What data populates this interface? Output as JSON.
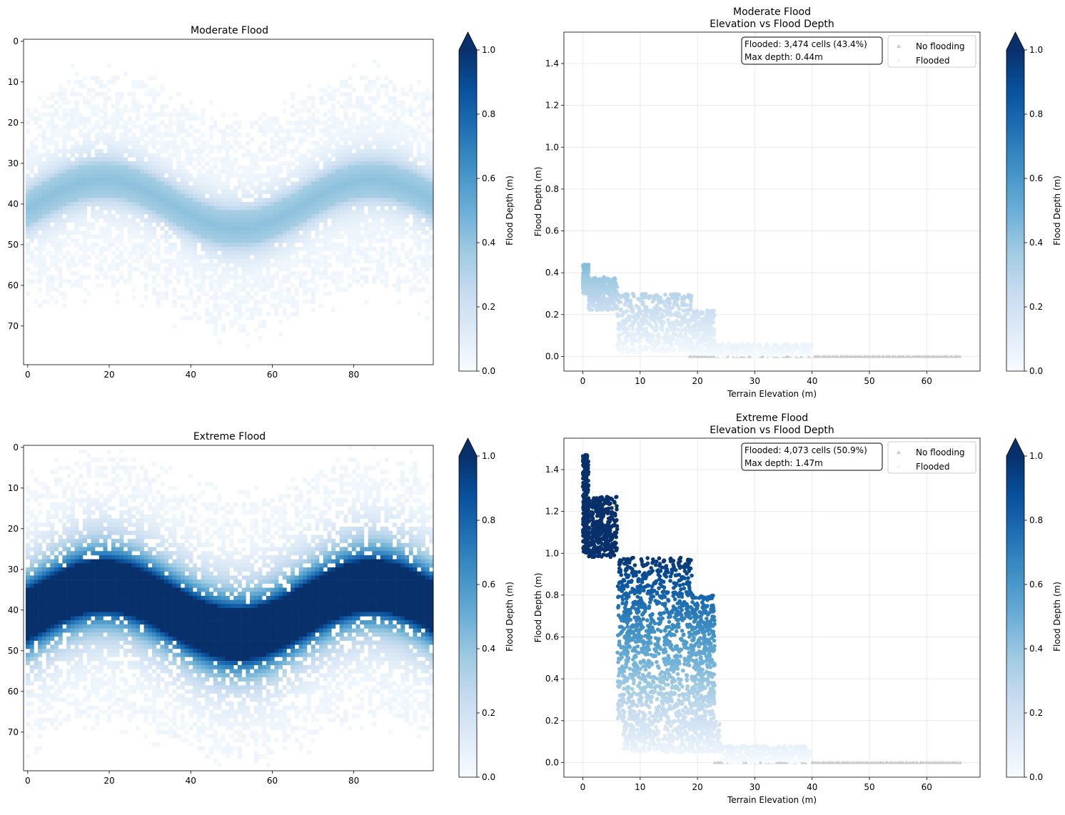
{
  "chart_data": [
    {
      "type": "heatmap",
      "title": "Moderate Flood",
      "xlabel": "",
      "ylabel": "",
      "grid_size": {
        "rows": 80,
        "cols": 100
      },
      "xticks": [
        0,
        20,
        40,
        60,
        80
      ],
      "yticks": [
        0,
        10,
        20,
        30,
        40,
        50,
        60,
        70
      ],
      "xlim": [
        -0.5,
        99.5
      ],
      "ylim": [
        79.5,
        -0.5
      ],
      "colormap": "Blues",
      "colorbar": {
        "label": "Flood Depth (m)",
        "range": [
          0.0,
          1.0
        ],
        "ticks": [
          "0.0",
          "0.2",
          "0.4",
          "0.6",
          "0.8",
          "1.0"
        ],
        "extend": "max"
      },
      "river": {
        "center_row": 40,
        "amplitude_rows": 6,
        "period_cols": 66,
        "peak_depth": 0.44,
        "band_halfwidth_rows": 4,
        "spread_rows": 16
      }
    },
    {
      "type": "scatter",
      "title": "Moderate Flood\nElevation vs Flood Depth",
      "title_lines": [
        "Moderate Flood",
        "Elevation vs Flood Depth"
      ],
      "xlabel": "Terrain Elevation (m)",
      "ylabel": "Flood Depth (m)",
      "xlim": [
        -3.3,
        69.3
      ],
      "ylim": [
        -0.07,
        1.55
      ],
      "xticks": [
        0,
        10,
        20,
        30,
        40,
        50,
        60
      ],
      "yticks": [
        "0.0",
        "0.2",
        "0.4",
        "0.6",
        "0.8",
        "1.0",
        "1.2",
        "1.4"
      ],
      "grid": true,
      "legend": {
        "position": "top-right",
        "entries": [
          "No flooding",
          "Flooded"
        ]
      },
      "annotation": [
        "Flooded: 3,474 cells (43.4%)",
        "Max depth: 0.44m"
      ],
      "colorbar": {
        "label": "Flood Depth (m)",
        "range": [
          0.0,
          1.0
        ],
        "ticks": [
          "0.0",
          "0.2",
          "0.4",
          "0.6",
          "0.8",
          "1.0"
        ],
        "extend": "max"
      },
      "flooded_envelope": [
        {
          "elev": [
            0,
            1
          ],
          "depth": [
            0.3,
            0.44
          ]
        },
        {
          "elev": [
            1,
            6
          ],
          "depth": [
            0.22,
            0.38
          ]
        },
        {
          "elev": [
            6,
            19
          ],
          "depth": [
            0.02,
            0.3
          ]
        },
        {
          "elev": [
            19,
            23
          ],
          "depth": [
            0.01,
            0.22
          ]
        },
        {
          "elev": [
            23,
            40
          ],
          "depth": [
            0.0,
            0.06
          ]
        }
      ],
      "no_flood_range": {
        "elev": [
          18.5,
          66
        ],
        "depth": 0.0
      },
      "flooded_cells": 3474,
      "flooded_pct": 43.4,
      "max_depth": 0.44
    },
    {
      "type": "heatmap",
      "title": "Extreme Flood",
      "xlabel": "",
      "ylabel": "",
      "grid_size": {
        "rows": 80,
        "cols": 100
      },
      "xticks": [
        0,
        20,
        40,
        60,
        80
      ],
      "yticks": [
        0,
        10,
        20,
        30,
        40,
        50,
        60,
        70
      ],
      "xlim": [
        -0.5,
        99.5
      ],
      "ylim": [
        79.5,
        -0.5
      ],
      "colormap": "Blues",
      "colorbar": {
        "label": "Flood Depth (m)",
        "range": [
          0.0,
          1.0
        ],
        "ticks": [
          "0.0",
          "0.2",
          "0.4",
          "0.6",
          "0.8",
          "1.0"
        ],
        "extend": "max"
      },
      "river": {
        "center_row": 40,
        "amplitude_rows": 6,
        "period_cols": 66,
        "peak_depth": 1.47,
        "band_halfwidth_rows": 5,
        "spread_rows": 22
      }
    },
    {
      "type": "scatter",
      "title": "Extreme Flood\nElevation vs Flood Depth",
      "title_lines": [
        "Extreme Flood",
        "Elevation vs Flood Depth"
      ],
      "xlabel": "Terrain Elevation (m)",
      "ylabel": "Flood Depth (m)",
      "xlim": [
        -3.3,
        69.3
      ],
      "ylim": [
        -0.07,
        1.55
      ],
      "xticks": [
        0,
        10,
        20,
        30,
        40,
        50,
        60
      ],
      "yticks": [
        "0.0",
        "0.2",
        "0.4",
        "0.6",
        "0.8",
        "1.0",
        "1.2",
        "1.4"
      ],
      "grid": true,
      "legend": {
        "position": "top-right",
        "entries": [
          "No flooding",
          "Flooded"
        ]
      },
      "annotation": [
        "Flooded: 4,073 cells (50.9%)",
        "Max depth: 1.47m"
      ],
      "colorbar": {
        "label": "Flood Depth (m)",
        "range": [
          0.0,
          1.0
        ],
        "ticks": [
          "0.0",
          "0.2",
          "0.4",
          "0.6",
          "0.8",
          "1.0"
        ],
        "extend": "max"
      },
      "flooded_envelope": [
        {
          "elev": [
            0,
            1
          ],
          "depth": [
            1.0,
            1.47
          ]
        },
        {
          "elev": [
            1,
            6
          ],
          "depth": [
            0.98,
            1.27
          ]
        },
        {
          "elev": [
            6,
            19
          ],
          "depth": [
            0.2,
            0.98
          ]
        },
        {
          "elev": [
            19,
            23
          ],
          "depth": [
            0.16,
            0.8
          ]
        },
        {
          "elev": [
            7,
            24
          ],
          "depth": [
            0.05,
            0.2
          ]
        },
        {
          "elev": [
            24,
            40
          ],
          "depth": [
            0.0,
            0.08
          ]
        }
      ],
      "no_flood_range": {
        "elev": [
          23,
          66
        ],
        "depth": 0.0
      },
      "flooded_cells": 4073,
      "flooded_pct": 50.9,
      "max_depth": 1.47
    }
  ]
}
